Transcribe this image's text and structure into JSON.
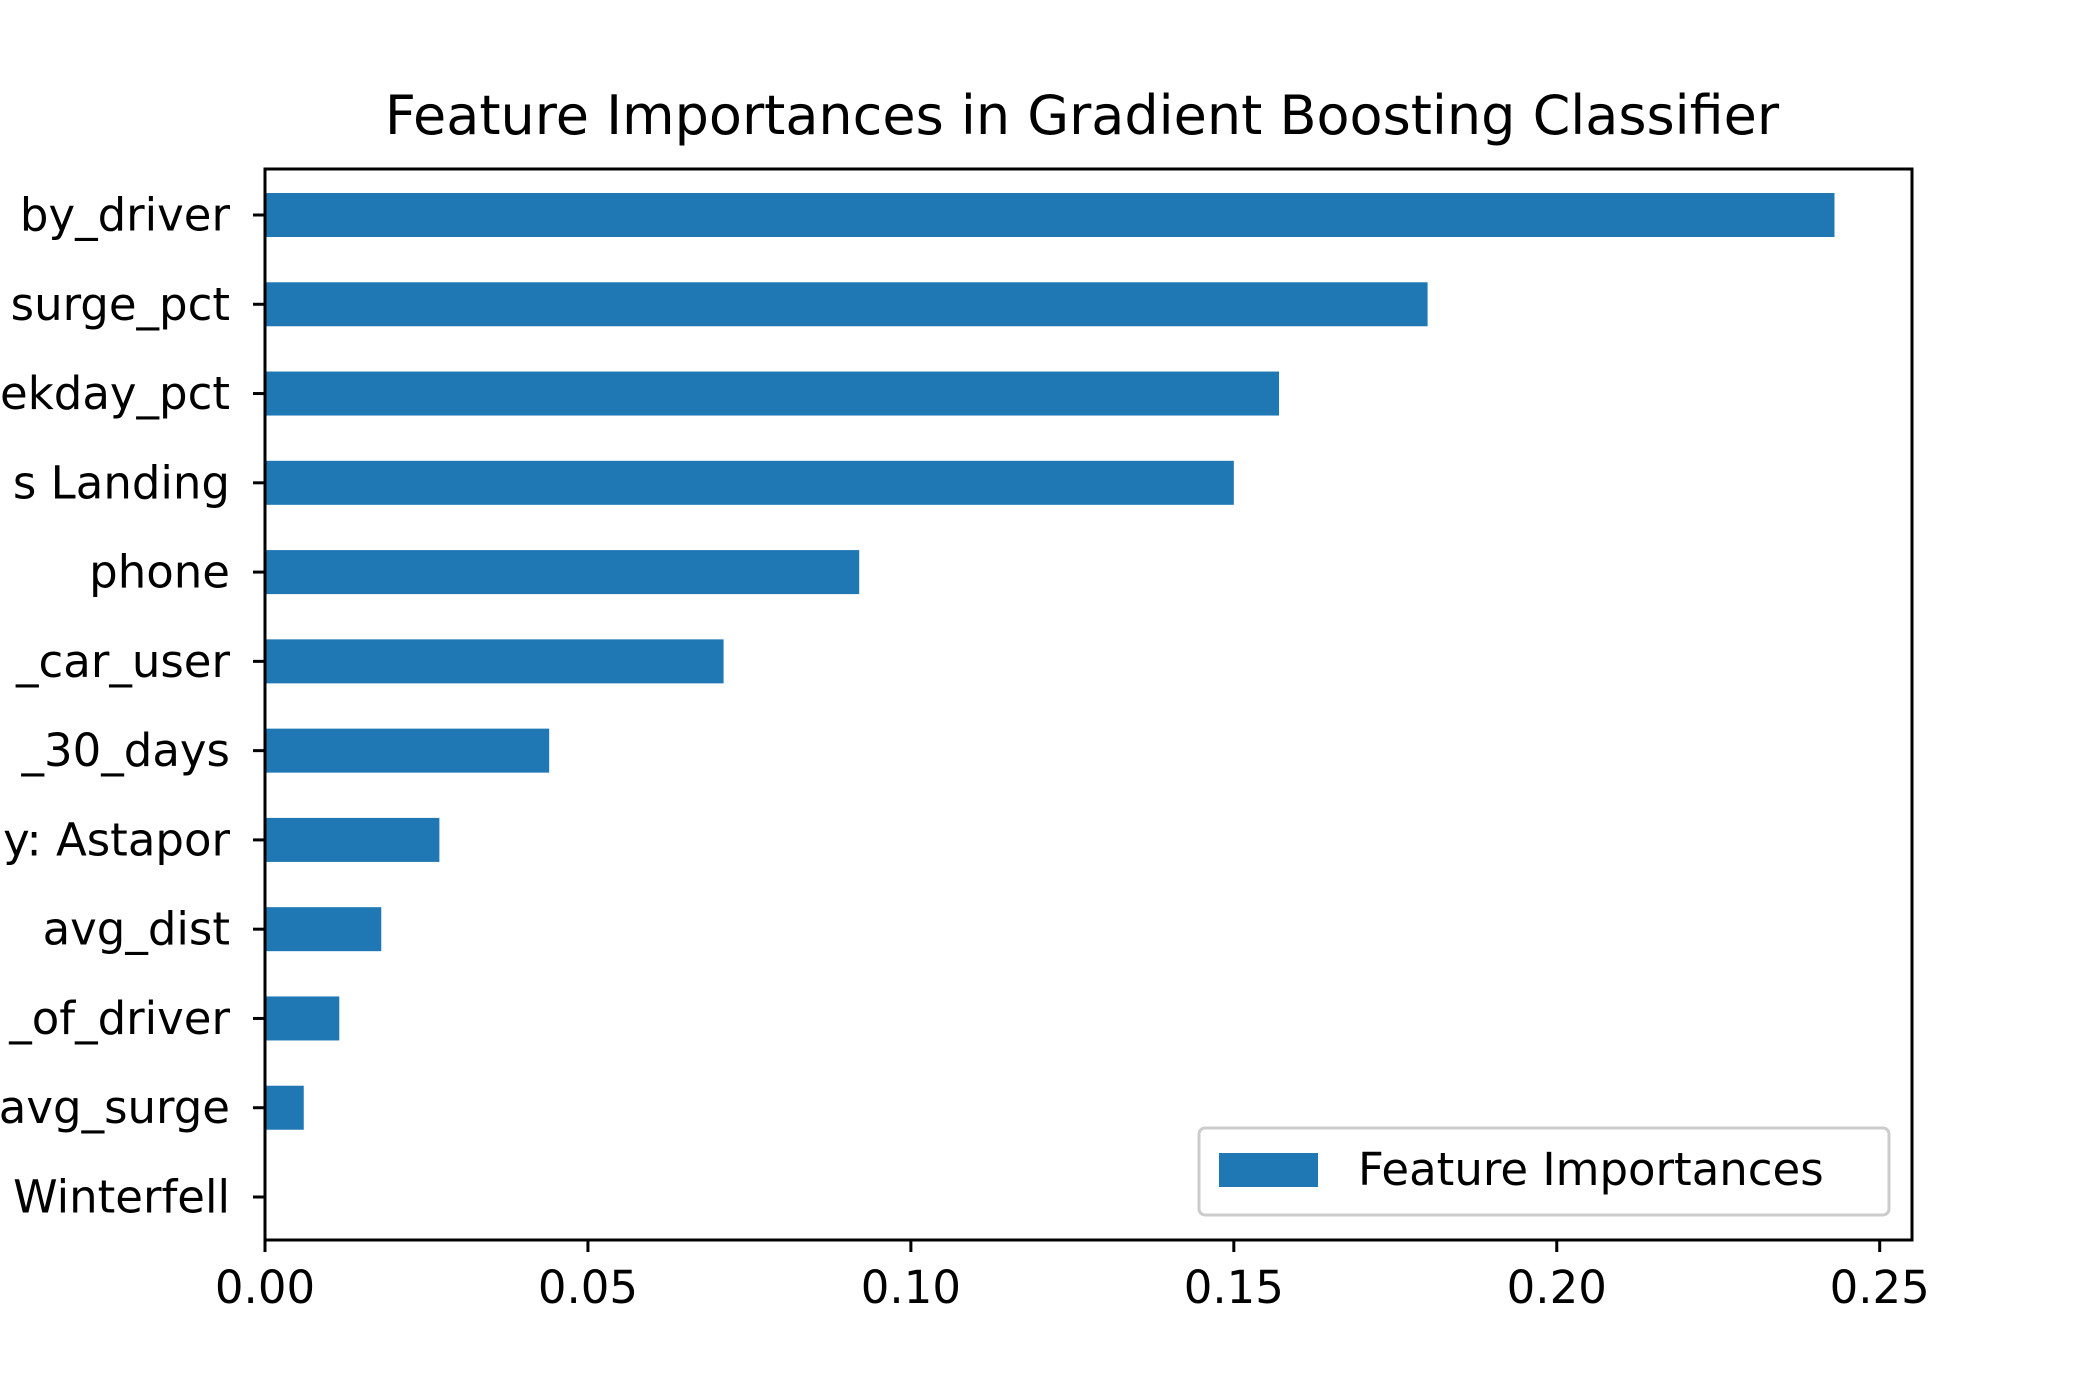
{
  "chart_data": {
    "type": "bar",
    "orientation": "horizontal",
    "title": "Feature Importances in Gradient Boosting Classifier",
    "xlabel": "",
    "ylabel": "",
    "xlim": [
      0,
      0.255
    ],
    "xticks": [
      0.0,
      0.05,
      0.1,
      0.15,
      0.2,
      0.25
    ],
    "xtick_labels": [
      "0.00",
      "0.05",
      "0.10",
      "0.15",
      "0.20",
      "0.25"
    ],
    "categories": [
      "by_driver",
      "surge_pct",
      "ekday_pct",
      "s Landing",
      "phone",
      "_car_user",
      "_30_days",
      "y: Astapor",
      "avg_dist",
      "_of_driver",
      "avg_surge",
      "Winterfell"
    ],
    "series": [
      {
        "name": "Feature Importances",
        "color": "#1f77b4",
        "values": [
          0.243,
          0.18,
          0.157,
          0.15,
          0.092,
          0.071,
          0.044,
          0.027,
          0.018,
          0.0115,
          0.006,
          0.0
        ]
      }
    ],
    "legend": {
      "placement": "bottom-right"
    },
    "grid": false
  }
}
